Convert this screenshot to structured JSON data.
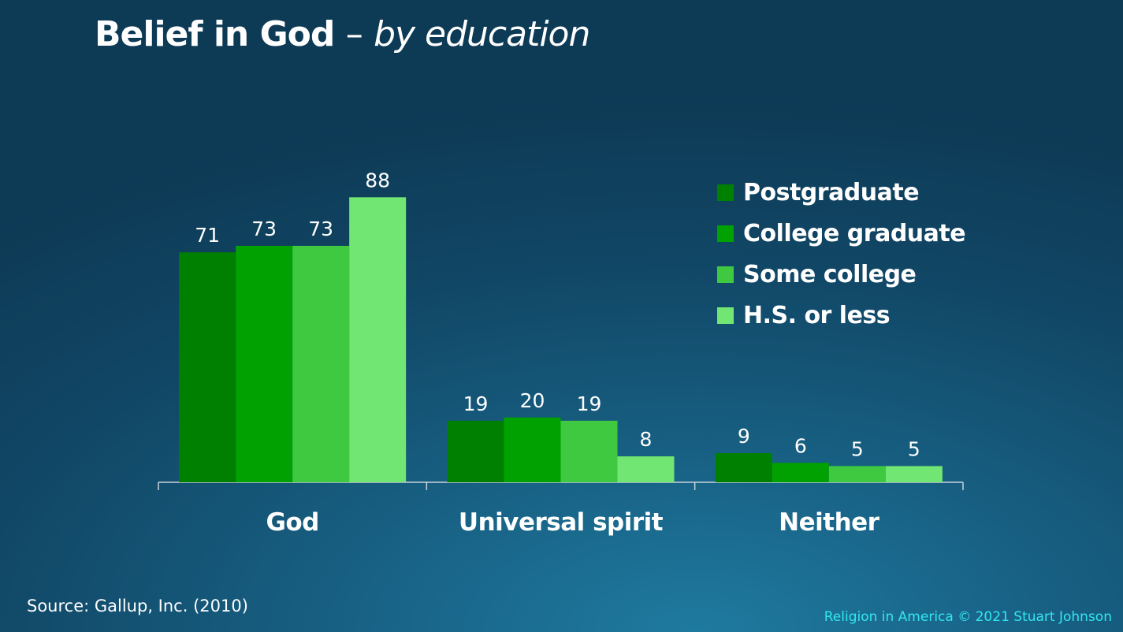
{
  "title": "Belief in God",
  "title_separator": "–",
  "subtitle": "by education",
  "source": "Source: Gallup, Inc. (2010)",
  "credit": "Religion in America © 2021 Stuart Johnson",
  "chart_data": {
    "type": "bar",
    "categories": [
      "God",
      "Universal spirit",
      "Neither"
    ],
    "series": [
      {
        "name": "Postgraduate",
        "values": [
          71,
          19,
          9
        ],
        "color": "#008000"
      },
      {
        "name": "College graduate",
        "values": [
          73,
          20,
          6
        ],
        "color": "#00a100"
      },
      {
        "name": "Some college",
        "values": [
          73,
          19,
          5
        ],
        "color": "#3ec940"
      },
      {
        "name": "H.S. or less",
        "values": [
          88,
          8,
          5
        ],
        "color": "#72e672"
      }
    ],
    "ylim": [
      0,
      100
    ],
    "grid": false,
    "legend_position": "top-right",
    "data_labels": true
  }
}
